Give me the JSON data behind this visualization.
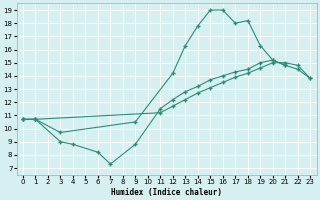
{
  "xlabel": "Humidex (Indice chaleur)",
  "xlim": [
    -0.5,
    23.5
  ],
  "ylim": [
    6.5,
    19.5
  ],
  "xticks": [
    0,
    1,
    2,
    3,
    4,
    5,
    6,
    7,
    8,
    9,
    10,
    11,
    12,
    13,
    14,
    15,
    16,
    17,
    18,
    19,
    20,
    21,
    22,
    23
  ],
  "yticks": [
    7,
    8,
    9,
    10,
    11,
    12,
    13,
    14,
    15,
    16,
    17,
    18,
    19
  ],
  "line_color": "#2e8b77",
  "bg_color": "#d6eff0",
  "grid_color": "#ffffff",
  "line1_x": [
    0,
    1,
    3,
    9,
    12,
    13,
    14,
    15,
    16,
    17,
    18,
    19,
    20,
    21
  ],
  "line1_y": [
    10.7,
    10.7,
    9.7,
    10.5,
    14.2,
    16.3,
    17.8,
    19.0,
    19.0,
    18.0,
    18.2,
    16.3,
    15.2,
    14.8
  ],
  "line2_x": [
    0,
    1,
    3,
    4,
    6,
    7,
    9,
    11,
    12,
    13,
    14,
    15,
    16,
    17,
    18,
    19,
    20,
    21,
    22,
    23
  ],
  "line2_y": [
    10.7,
    10.7,
    9.0,
    8.8,
    8.2,
    7.3,
    8.8,
    11.5,
    12.2,
    12.8,
    13.2,
    13.7,
    14.0,
    14.3,
    14.5,
    15.0,
    15.2,
    14.8,
    14.5,
    13.8
  ],
  "line3_x": [
    0,
    1,
    11,
    12,
    13,
    14,
    15,
    16,
    17,
    18,
    19,
    20,
    21,
    22,
    23
  ],
  "line3_y": [
    10.7,
    10.7,
    11.2,
    11.7,
    12.2,
    12.7,
    13.1,
    13.5,
    13.9,
    14.2,
    14.6,
    15.0,
    15.0,
    14.8,
    13.8
  ]
}
